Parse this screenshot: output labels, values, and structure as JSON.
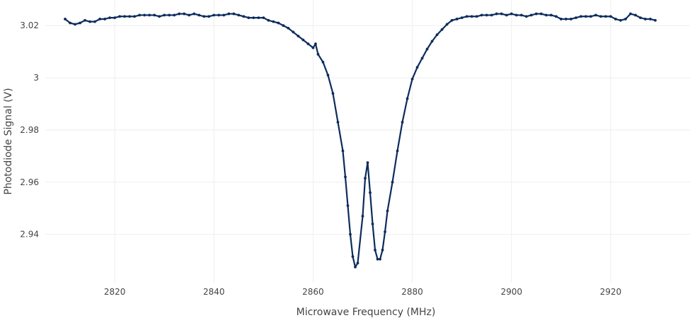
{
  "chart_data": {
    "type": "line",
    "title": "",
    "xlabel": "Microwave Frequency (MHz)",
    "ylabel": "Photodiode Signal (V)",
    "xlim": [
      2806,
      2936
    ],
    "ylim": [
      2.9215,
      3.0298
    ],
    "xticks": [
      2820,
      2840,
      2860,
      2880,
      2900,
      2920
    ],
    "xtick_labels": [
      "2820",
      "2840",
      "2860",
      "2880",
      "2900",
      "2920"
    ],
    "yticks": [
      2.94,
      2.96,
      2.98,
      3.0,
      3.02
    ],
    "ytick_labels": [
      "2.94",
      "2.96",
      "2.98",
      "3",
      "3.02"
    ],
    "grid": true,
    "series": [
      {
        "color": "#0c2c5c",
        "marker": "circle",
        "x": [
          2810,
          2811,
          2812,
          2813,
          2814,
          2815,
          2816,
          2817,
          2818,
          2819,
          2820,
          2821,
          2822,
          2823,
          2824,
          2825,
          2826,
          2827,
          2828,
          2829,
          2830,
          2831,
          2832,
          2833,
          2834,
          2835,
          2836,
          2837,
          2838,
          2839,
          2840,
          2841,
          2842,
          2843,
          2844,
          2845,
          2846,
          2847,
          2848,
          2849,
          2850,
          2851,
          2852,
          2853,
          2854,
          2855,
          2856,
          2857,
          2858,
          2859,
          2860,
          2860.5,
          2861,
          2862,
          2863,
          2864,
          2865,
          2866,
          2866.5,
          2867,
          2867.5,
          2868,
          2868.5,
          2869,
          2870,
          2870.5,
          2871,
          2871.5,
          2872,
          2872.5,
          2873,
          2873.5,
          2874,
          2874.5,
          2875,
          2876,
          2877,
          2878,
          2879,
          2880,
          2881,
          2882,
          2883,
          2884,
          2885,
          2886,
          2887,
          2888,
          2889,
          2890,
          2891,
          2892,
          2893,
          2894,
          2895,
          2896,
          2897,
          2898,
          2899,
          2900,
          2901,
          2902,
          2903,
          2904,
          2905,
          2906,
          2907,
          2908,
          2909,
          2910,
          2911,
          2912,
          2913,
          2914,
          2915,
          2916,
          2917,
          2918,
          2919,
          2920,
          2921,
          2922,
          2923,
          2924,
          2925,
          2926,
          2927,
          2928,
          2929
        ],
        "y": [
          3.0225,
          3.021,
          3.0205,
          3.021,
          3.022,
          3.0215,
          3.0215,
          3.0225,
          3.0225,
          3.023,
          3.023,
          3.0235,
          3.0235,
          3.0235,
          3.0235,
          3.024,
          3.024,
          3.024,
          3.024,
          3.0235,
          3.024,
          3.024,
          3.024,
          3.0245,
          3.0245,
          3.024,
          3.0245,
          3.024,
          3.0235,
          3.0235,
          3.024,
          3.024,
          3.024,
          3.0245,
          3.0245,
          3.024,
          3.0235,
          3.023,
          3.023,
          3.023,
          3.023,
          3.022,
          3.0215,
          3.021,
          3.02,
          3.019,
          3.0175,
          3.016,
          3.0145,
          3.013,
          3.0115,
          3.013,
          3.009,
          3.006,
          3.001,
          2.994,
          2.983,
          2.972,
          2.962,
          2.951,
          2.94,
          2.9315,
          2.9275,
          2.929,
          2.947,
          2.9615,
          2.9675,
          2.956,
          2.944,
          2.934,
          2.9305,
          2.9305,
          2.934,
          2.941,
          2.949,
          2.96,
          2.972,
          2.983,
          2.992,
          2.9995,
          3.004,
          3.0075,
          3.011,
          3.014,
          3.0165,
          3.0185,
          3.0205,
          3.022,
          3.0225,
          3.023,
          3.0235,
          3.0235,
          3.0235,
          3.024,
          3.024,
          3.024,
          3.0245,
          3.0245,
          3.024,
          3.0245,
          3.024,
          3.024,
          3.0235,
          3.024,
          3.0245,
          3.0245,
          3.024,
          3.024,
          3.0235,
          3.0225,
          3.0225,
          3.0225,
          3.023,
          3.0235,
          3.0235,
          3.0235,
          3.024,
          3.0235,
          3.0235,
          3.0235,
          3.0225,
          3.022,
          3.0225,
          3.0245,
          3.024,
          3.023,
          3.0225,
          3.0225,
          3.022
        ]
      }
    ]
  }
}
